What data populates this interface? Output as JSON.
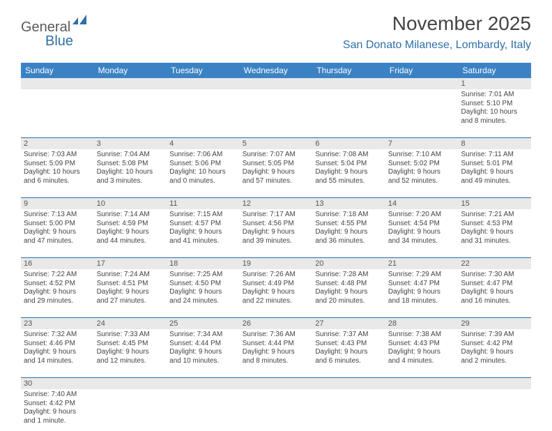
{
  "logo": {
    "general": "General",
    "blue": "Blue"
  },
  "title": "November 2025",
  "subtitle": "San Donato Milanese, Lombardy, Italy",
  "colors": {
    "header_bar": "#3b82c4",
    "daynum_bg": "#e9e9e9",
    "accent": "#2f6fa8",
    "text": "#444444",
    "body_bg": "#ffffff"
  },
  "dayHeaders": [
    "Sunday",
    "Monday",
    "Tuesday",
    "Wednesday",
    "Thursday",
    "Friday",
    "Saturday"
  ],
  "weeks": [
    [
      {
        "n": "",
        "l": [
          "",
          "",
          "",
          ""
        ]
      },
      {
        "n": "",
        "l": [
          "",
          "",
          "",
          ""
        ]
      },
      {
        "n": "",
        "l": [
          "",
          "",
          "",
          ""
        ]
      },
      {
        "n": "",
        "l": [
          "",
          "",
          "",
          ""
        ]
      },
      {
        "n": "",
        "l": [
          "",
          "",
          "",
          ""
        ]
      },
      {
        "n": "",
        "l": [
          "",
          "",
          "",
          ""
        ]
      },
      {
        "n": "1",
        "l": [
          "Sunrise: 7:01 AM",
          "Sunset: 5:10 PM",
          "Daylight: 10 hours",
          "and 8 minutes."
        ]
      }
    ],
    [
      {
        "n": "2",
        "l": [
          "Sunrise: 7:03 AM",
          "Sunset: 5:09 PM",
          "Daylight: 10 hours",
          "and 6 minutes."
        ]
      },
      {
        "n": "3",
        "l": [
          "Sunrise: 7:04 AM",
          "Sunset: 5:08 PM",
          "Daylight: 10 hours",
          "and 3 minutes."
        ]
      },
      {
        "n": "4",
        "l": [
          "Sunrise: 7:06 AM",
          "Sunset: 5:06 PM",
          "Daylight: 10 hours",
          "and 0 minutes."
        ]
      },
      {
        "n": "5",
        "l": [
          "Sunrise: 7:07 AM",
          "Sunset: 5:05 PM",
          "Daylight: 9 hours",
          "and 57 minutes."
        ]
      },
      {
        "n": "6",
        "l": [
          "Sunrise: 7:08 AM",
          "Sunset: 5:04 PM",
          "Daylight: 9 hours",
          "and 55 minutes."
        ]
      },
      {
        "n": "7",
        "l": [
          "Sunrise: 7:10 AM",
          "Sunset: 5:02 PM",
          "Daylight: 9 hours",
          "and 52 minutes."
        ]
      },
      {
        "n": "8",
        "l": [
          "Sunrise: 7:11 AM",
          "Sunset: 5:01 PM",
          "Daylight: 9 hours",
          "and 49 minutes."
        ]
      }
    ],
    [
      {
        "n": "9",
        "l": [
          "Sunrise: 7:13 AM",
          "Sunset: 5:00 PM",
          "Daylight: 9 hours",
          "and 47 minutes."
        ]
      },
      {
        "n": "10",
        "l": [
          "Sunrise: 7:14 AM",
          "Sunset: 4:59 PM",
          "Daylight: 9 hours",
          "and 44 minutes."
        ]
      },
      {
        "n": "11",
        "l": [
          "Sunrise: 7:15 AM",
          "Sunset: 4:57 PM",
          "Daylight: 9 hours",
          "and 41 minutes."
        ]
      },
      {
        "n": "12",
        "l": [
          "Sunrise: 7:17 AM",
          "Sunset: 4:56 PM",
          "Daylight: 9 hours",
          "and 39 minutes."
        ]
      },
      {
        "n": "13",
        "l": [
          "Sunrise: 7:18 AM",
          "Sunset: 4:55 PM",
          "Daylight: 9 hours",
          "and 36 minutes."
        ]
      },
      {
        "n": "14",
        "l": [
          "Sunrise: 7:20 AM",
          "Sunset: 4:54 PM",
          "Daylight: 9 hours",
          "and 34 minutes."
        ]
      },
      {
        "n": "15",
        "l": [
          "Sunrise: 7:21 AM",
          "Sunset: 4:53 PM",
          "Daylight: 9 hours",
          "and 31 minutes."
        ]
      }
    ],
    [
      {
        "n": "16",
        "l": [
          "Sunrise: 7:22 AM",
          "Sunset: 4:52 PM",
          "Daylight: 9 hours",
          "and 29 minutes."
        ]
      },
      {
        "n": "17",
        "l": [
          "Sunrise: 7:24 AM",
          "Sunset: 4:51 PM",
          "Daylight: 9 hours",
          "and 27 minutes."
        ]
      },
      {
        "n": "18",
        "l": [
          "Sunrise: 7:25 AM",
          "Sunset: 4:50 PM",
          "Daylight: 9 hours",
          "and 24 minutes."
        ]
      },
      {
        "n": "19",
        "l": [
          "Sunrise: 7:26 AM",
          "Sunset: 4:49 PM",
          "Daylight: 9 hours",
          "and 22 minutes."
        ]
      },
      {
        "n": "20",
        "l": [
          "Sunrise: 7:28 AM",
          "Sunset: 4:48 PM",
          "Daylight: 9 hours",
          "and 20 minutes."
        ]
      },
      {
        "n": "21",
        "l": [
          "Sunrise: 7:29 AM",
          "Sunset: 4:47 PM",
          "Daylight: 9 hours",
          "and 18 minutes."
        ]
      },
      {
        "n": "22",
        "l": [
          "Sunrise: 7:30 AM",
          "Sunset: 4:47 PM",
          "Daylight: 9 hours",
          "and 16 minutes."
        ]
      }
    ],
    [
      {
        "n": "23",
        "l": [
          "Sunrise: 7:32 AM",
          "Sunset: 4:46 PM",
          "Daylight: 9 hours",
          "and 14 minutes."
        ]
      },
      {
        "n": "24",
        "l": [
          "Sunrise: 7:33 AM",
          "Sunset: 4:45 PM",
          "Daylight: 9 hours",
          "and 12 minutes."
        ]
      },
      {
        "n": "25",
        "l": [
          "Sunrise: 7:34 AM",
          "Sunset: 4:44 PM",
          "Daylight: 9 hours",
          "and 10 minutes."
        ]
      },
      {
        "n": "26",
        "l": [
          "Sunrise: 7:36 AM",
          "Sunset: 4:44 PM",
          "Daylight: 9 hours",
          "and 8 minutes."
        ]
      },
      {
        "n": "27",
        "l": [
          "Sunrise: 7:37 AM",
          "Sunset: 4:43 PM",
          "Daylight: 9 hours",
          "and 6 minutes."
        ]
      },
      {
        "n": "28",
        "l": [
          "Sunrise: 7:38 AM",
          "Sunset: 4:43 PM",
          "Daylight: 9 hours",
          "and 4 minutes."
        ]
      },
      {
        "n": "29",
        "l": [
          "Sunrise: 7:39 AM",
          "Sunset: 4:42 PM",
          "Daylight: 9 hours",
          "and 2 minutes."
        ]
      }
    ],
    [
      {
        "n": "30",
        "l": [
          "Sunrise: 7:40 AM",
          "Sunset: 4:42 PM",
          "Daylight: 9 hours",
          "and 1 minute."
        ]
      },
      {
        "n": "",
        "l": [
          "",
          "",
          "",
          ""
        ]
      },
      {
        "n": "",
        "l": [
          "",
          "",
          "",
          ""
        ]
      },
      {
        "n": "",
        "l": [
          "",
          "",
          "",
          ""
        ]
      },
      {
        "n": "",
        "l": [
          "",
          "",
          "",
          ""
        ]
      },
      {
        "n": "",
        "l": [
          "",
          "",
          "",
          ""
        ]
      },
      {
        "n": "",
        "l": [
          "",
          "",
          "",
          ""
        ]
      }
    ]
  ]
}
